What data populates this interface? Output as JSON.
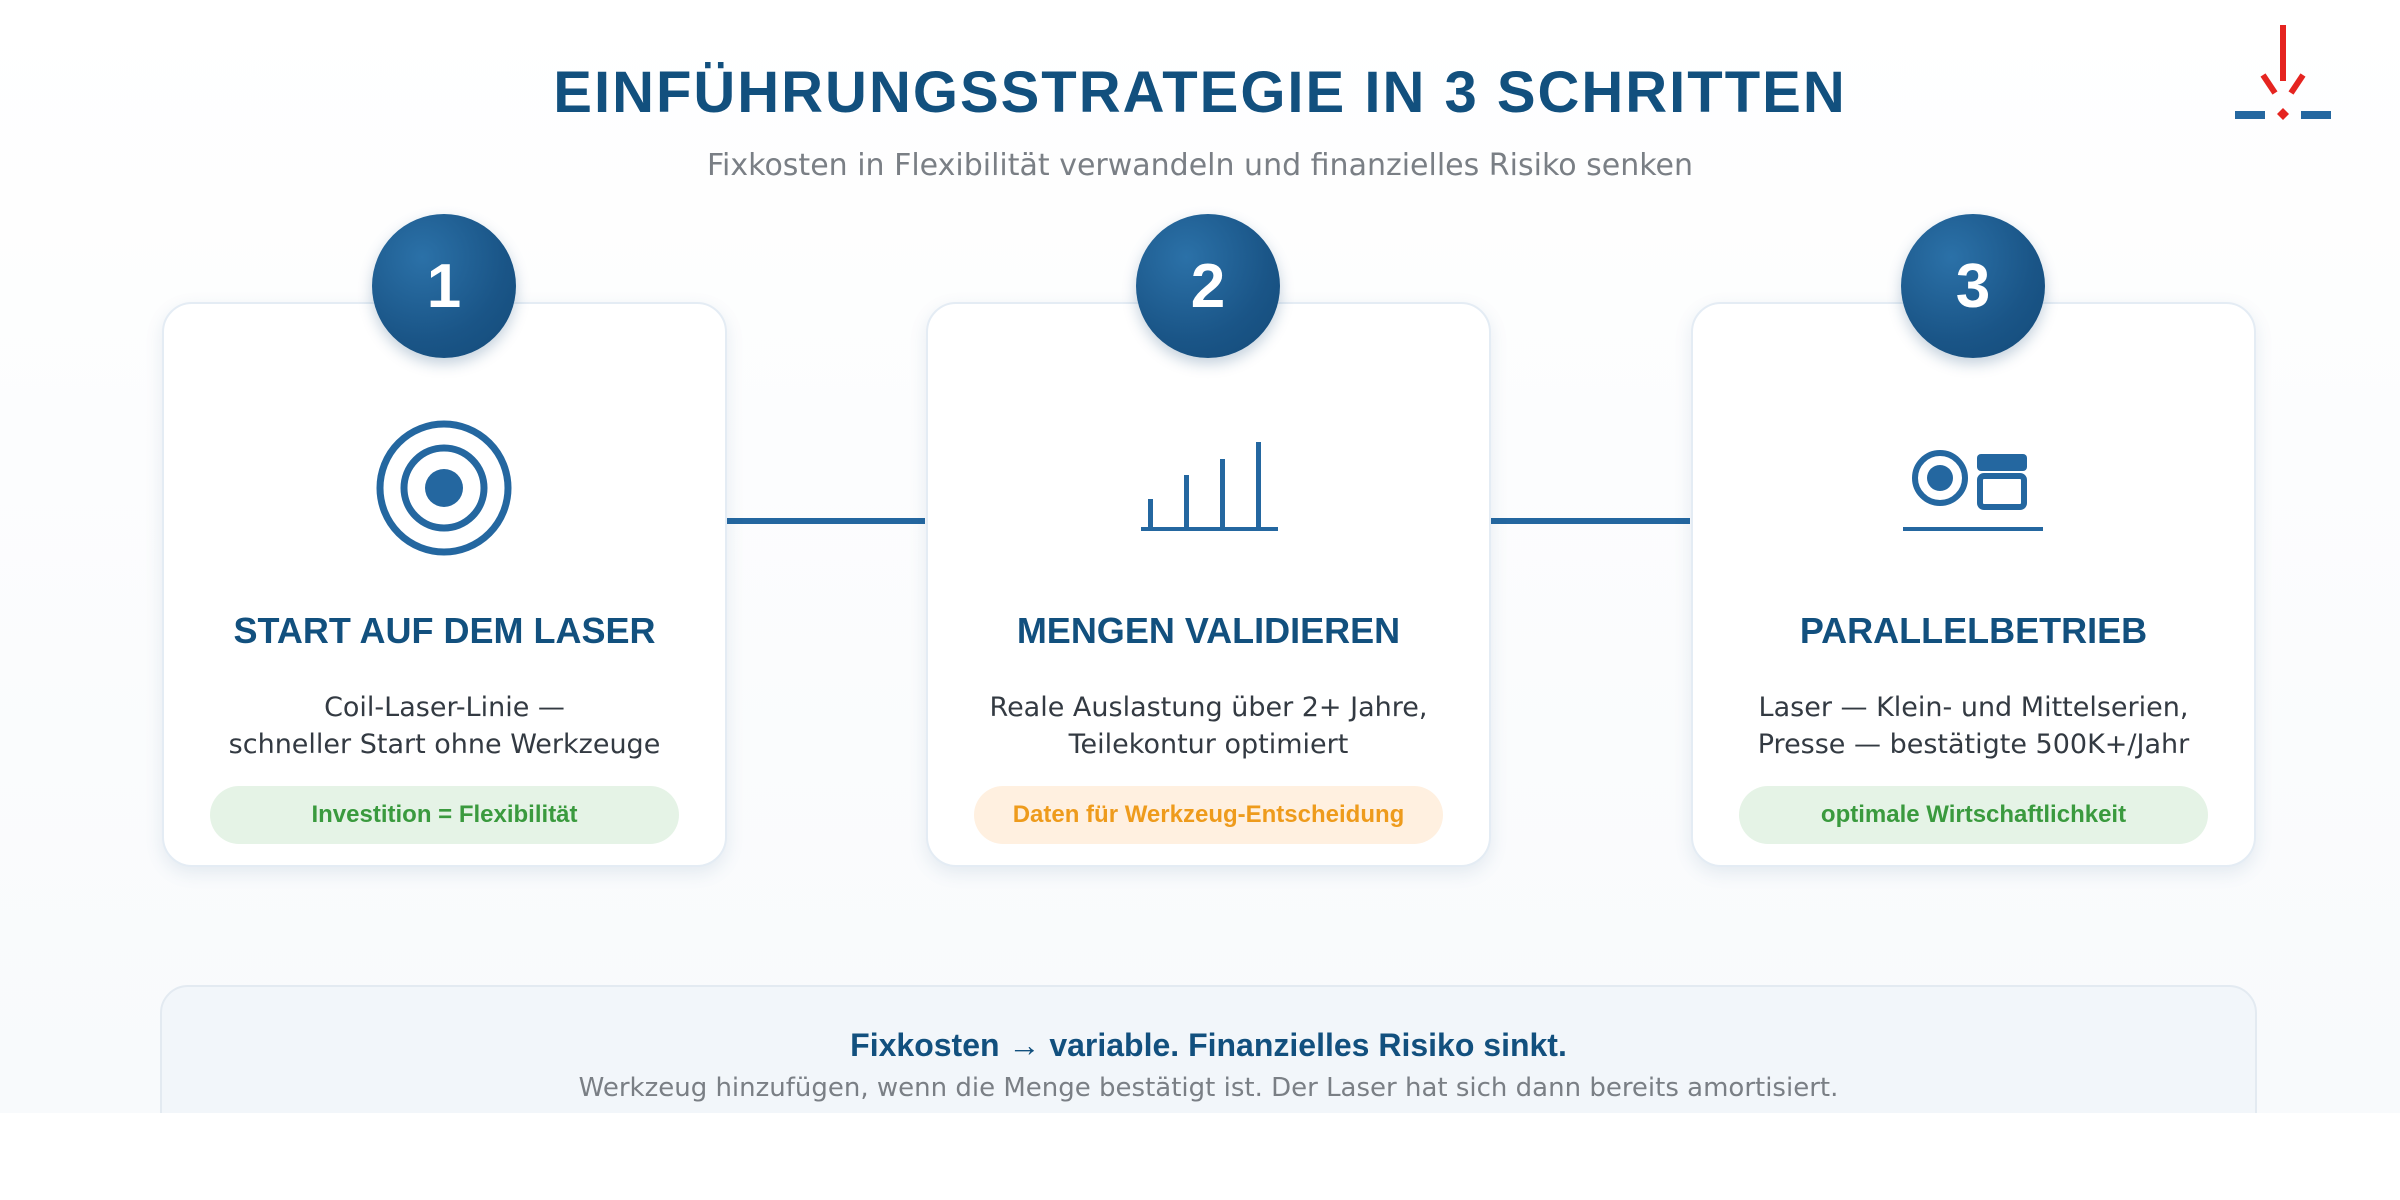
{
  "header": {
    "title": "EINFÜHRUNGSSTRATEGIE IN 3 SCHRITTEN",
    "subtitle": "Fixkosten in Flexibilität verwandeln und finanzielles Risiko senken",
    "logo_icon": "laser-cut-logo-icon"
  },
  "steps": [
    {
      "number": "1",
      "icon": "target-icon",
      "title": "START AUF DEM LASER",
      "desc_lines": [
        "Coil-Laser-Linie —",
        "schneller Start ohne Werkzeuge"
      ],
      "badge": "Investition = Flexibilität",
      "badge_color": "#3a9a3e"
    },
    {
      "number": "2",
      "icon": "bar-chart-icon",
      "title": "MENGEN VALIDIEREN",
      "desc_lines": [
        "Reale Auslastung über 2+ Jahre,",
        "Teilekontur optimiert"
      ],
      "badge": "Daten für Werkzeug-Entscheidung",
      "badge_color": "#ee9b1c"
    },
    {
      "number": "3",
      "icon": "parallel-machines-icon",
      "title": "PARALLELBETRIEB",
      "desc_lines": [
        "Laser — Klein- und Mittelserien,",
        "Presse — bestätigte 500K+/Jahr"
      ],
      "badge": "optimale Wirtschaftlichkeit",
      "badge_color": "#3a9a3e"
    }
  ],
  "summary": {
    "title": "Fixkosten → variable. Finanzielles Risiko sinkt.",
    "text": "Werkzeug hinzufügen, wenn die Menge bestätigt ist. Der Laser hat sich dann bereits amortisiert."
  },
  "colors": {
    "primary": "#12507e",
    "accent": "#2467a0",
    "logo_red": "#e52420",
    "green": "#3a9a3e",
    "orange": "#ee9b1c"
  }
}
